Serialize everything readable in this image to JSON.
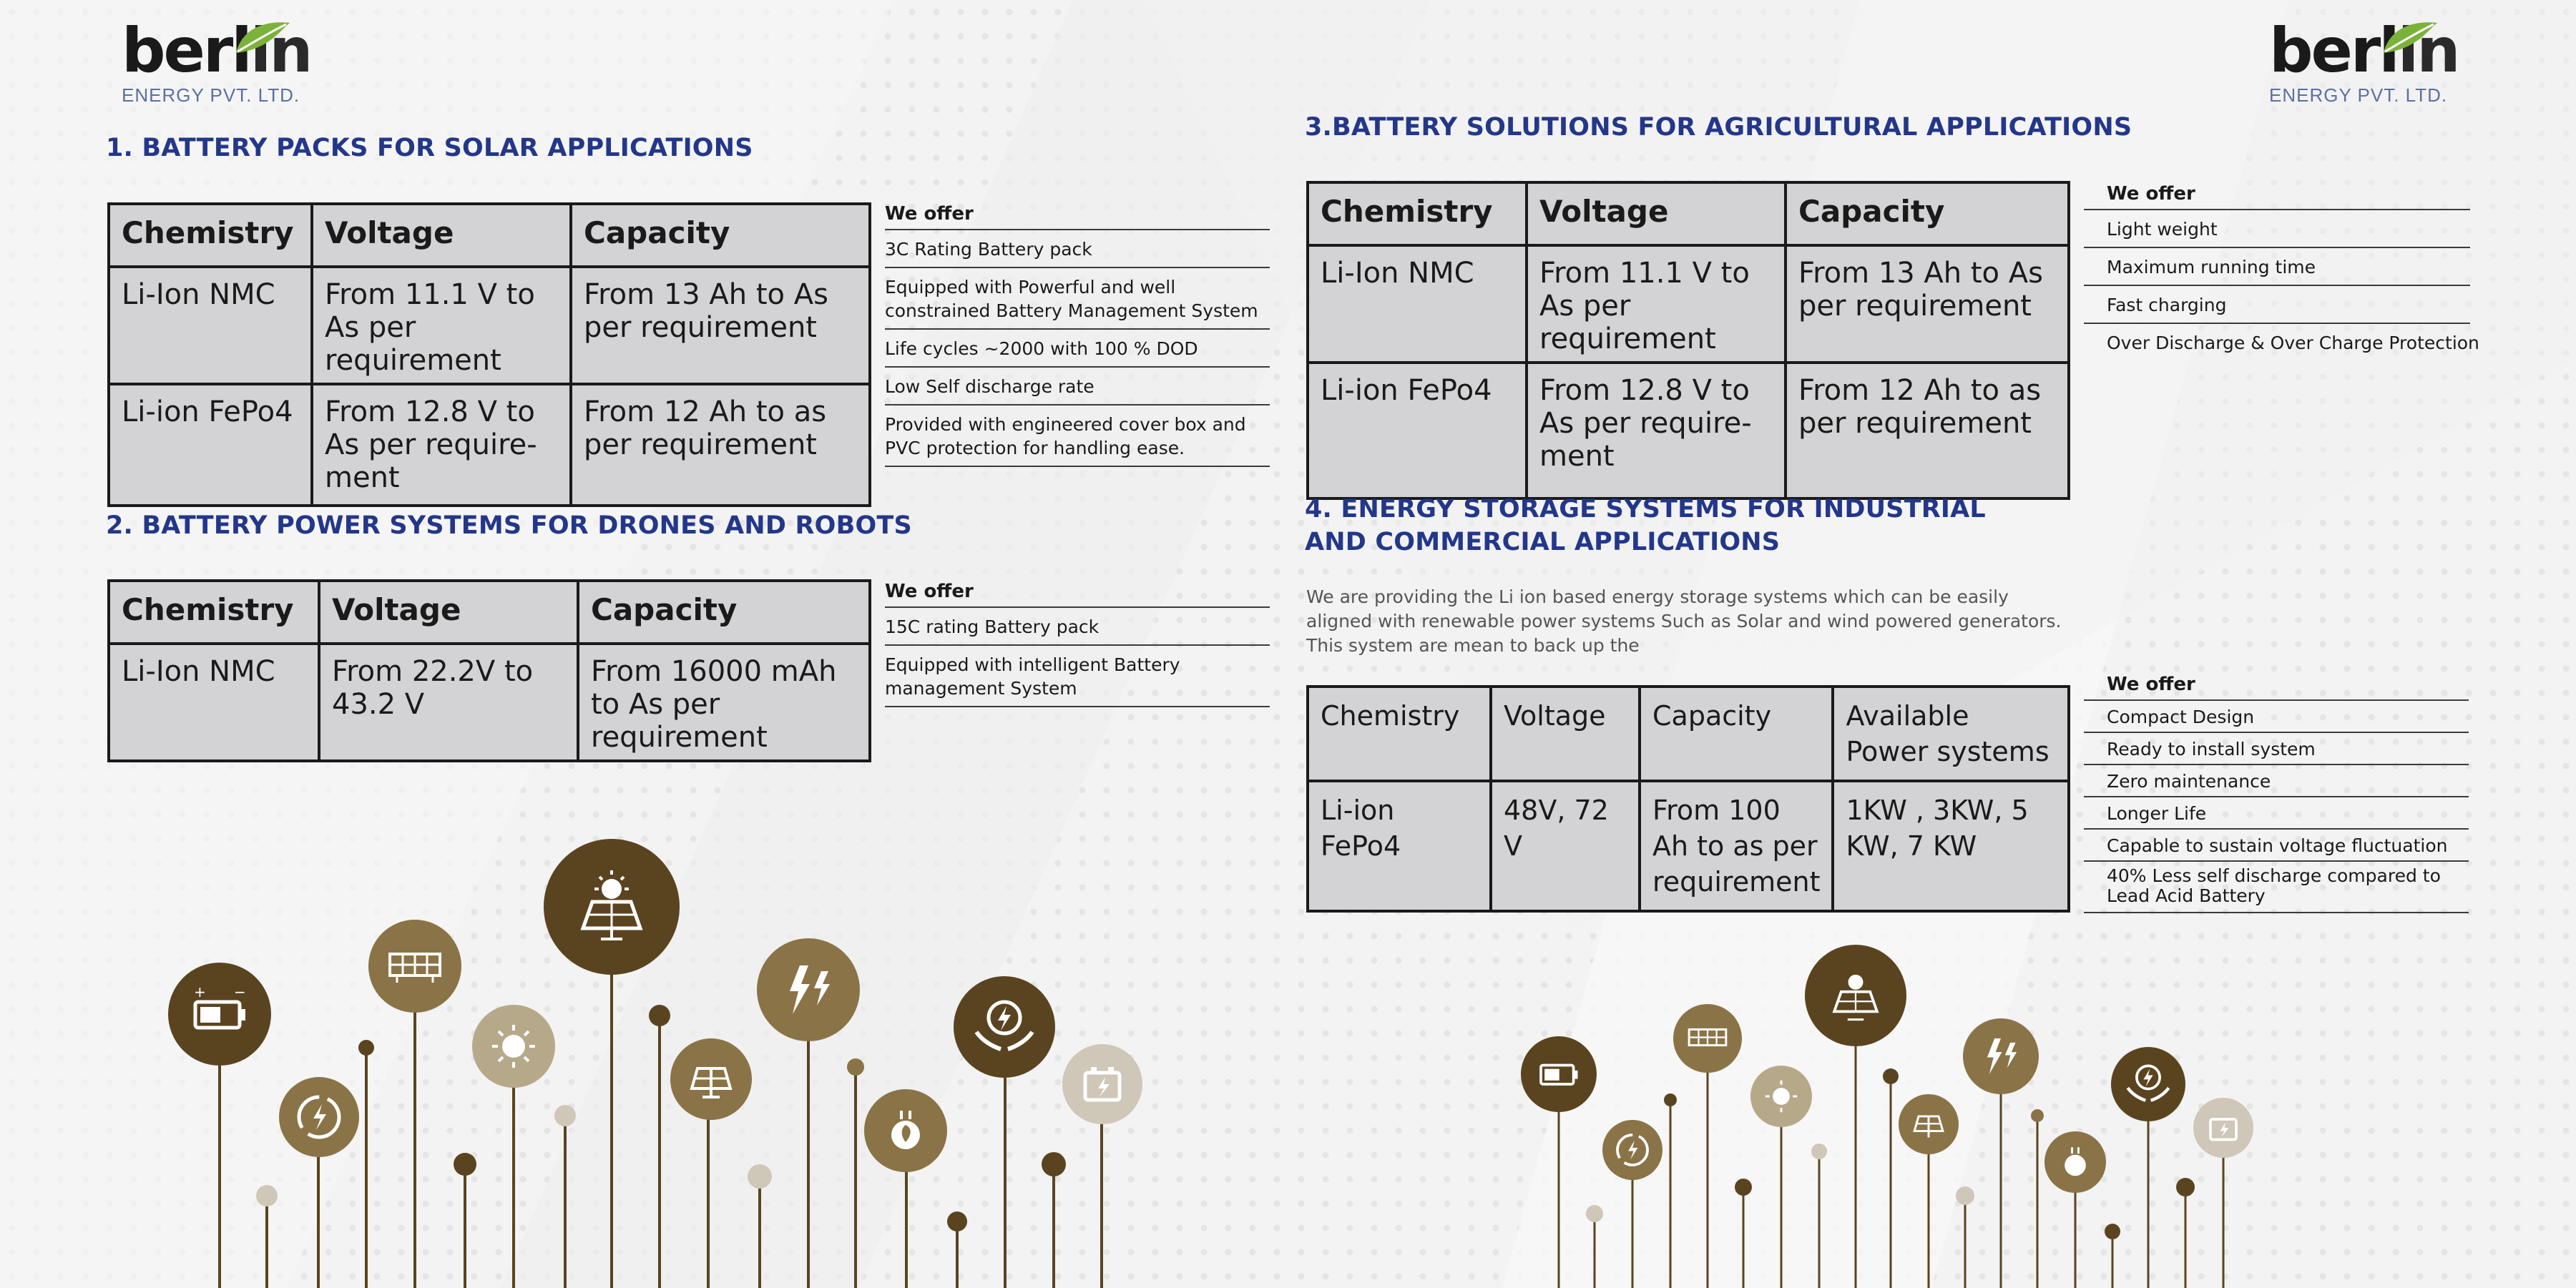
{
  "brand": {
    "word": "berl",
    "word_end": "in",
    "tagline": "ENERGY PVT. LTD.",
    "leaf_color": "#7bb23a"
  },
  "colors": {
    "heading": "#23378a",
    "table_fill": "#d3d3d5",
    "icon_dark": "#5a4420",
    "icon_mid": "#8a7346",
    "icon_light": "#b6a98a",
    "icon_pale": "#cfc7b7"
  },
  "section1": {
    "heading": "1. BATTERY PACKS FOR SOLAR APPLICATIONS",
    "headers": [
      "Chemistry",
      "Voltage",
      "Capacity"
    ],
    "rows": [
      [
        "Li-Ion NMC",
        "From 11.1 V to As per requirement",
        "From 13 Ah to As per requirement"
      ],
      [
        "Li-ion FePo4",
        "From 12.8 V to As per require-ment",
        "From 12 Ah to as per requirement"
      ]
    ],
    "offer_title": "We offer",
    "offers": [
      "3C Rating Battery pack",
      "Equipped with Powerful and well constrained Battery Management System",
      "Life cycles ~2000 with 100 % DOD",
      "Low Self discharge rate",
      "Provided with engineered cover box and PVC protection for handling ease."
    ]
  },
  "section2": {
    "heading": "2. BATTERY POWER SYSTEMS FOR DRONES AND ROBOTS",
    "headers": [
      "Chemistry",
      "Voltage",
      "Capacity"
    ],
    "rows": [
      [
        "Li-Ion NMC",
        "From 22.2V to 43.2 V",
        "From 16000 mAh to As per requirement"
      ]
    ],
    "offer_title": "We offer",
    "offers": [
      "15C rating Battery pack",
      "Equipped with intelligent Battery management System"
    ]
  },
  "section3": {
    "heading": "3.BATTERY SOLUTIONS FOR AGRICULTURAL APPLICATIONS",
    "headers": [
      "Chemistry",
      "Voltage",
      "Capacity"
    ],
    "rows": [
      [
        "Li-Ion NMC",
        "From 11.1 V to As per requirement",
        "From 13 Ah to As per requirement"
      ],
      [
        "Li-ion FePo4",
        "From 12.8 V to As per require-ment",
        "From 12 Ah to as per requirement"
      ]
    ],
    "offer_title": "We offer",
    "offers": [
      "Light weight",
      "Maximum running time",
      "Fast charging",
      "Over Discharge & Over Charge Protection"
    ]
  },
  "section4": {
    "heading_line1": "4. ENERGY STORAGE SYSTEMS FOR INDUSTRIAL",
    "heading_line2": "AND COMMERCIAL APPLICATIONS",
    "paragraph": "We are providing the Li ion based energy storage systems which can be easily aligned with renewable power systems Such as Solar and wind powered generators. This system are mean to back up the",
    "headers": [
      "Chemistry",
      "Voltage",
      "Capacity",
      "Available Power systems"
    ],
    "rows": [
      [
        "Li-ion FePo4",
        "48V, 72 V",
        "From 100 Ah to as per requirement",
        "1KW , 3KW, 5 KW, 7 KW"
      ]
    ],
    "offer_title": "We offer",
    "offers": [
      "Compact Design",
      "Ready to install system",
      "Zero maintenance",
      "Longer Life",
      "Capable to sustain voltage fluctuation",
      "40% Less self discharge compared to Lead Acid Battery"
    ]
  },
  "icons_left": [
    "battery-icon",
    "recycle-energy-icon",
    "solar-panel-icon",
    "sun-icon",
    "solar-panel-sun-icon",
    "solar-panel-icon",
    "lightning-icon",
    "eco-plug-icon",
    "energy-hands-icon",
    "battery-charge-icon"
  ],
  "icons_right": [
    "battery-icon",
    "recycle-energy-icon",
    "solar-panel-icon",
    "sun-icon",
    "solar-panel-sun-icon",
    "solar-panel-icon",
    "lightning-icon",
    "eco-plug-icon",
    "energy-hands-icon",
    "battery-charge-icon"
  ]
}
